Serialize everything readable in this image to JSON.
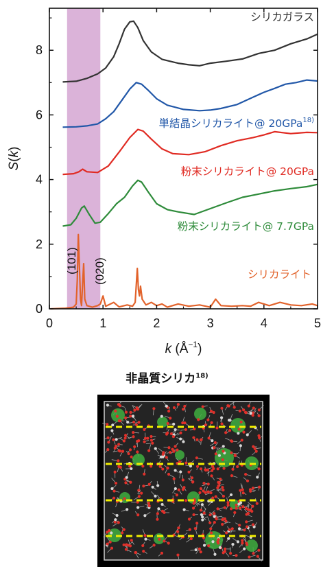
{
  "chart_data": {
    "type": "line",
    "xlabel_var": "k",
    "xlabel_unit": " (Å",
    "xlabel_exp": "−1",
    "xlabel_close": ")",
    "ylabel_var": "S",
    "ylabel_arg": "k",
    "xlim": [
      0,
      5
    ],
    "ylim": [
      0,
      9.3
    ],
    "xticks": [
      0,
      1,
      2,
      3,
      4,
      5
    ],
    "yticks": [
      0,
      2,
      4,
      6,
      8
    ],
    "highlight_band": {
      "x": [
        0.33,
        0.95
      ],
      "color": "#dbb3d9"
    },
    "peak_labels": [
      "(101)",
      "(020)"
    ],
    "series": [
      {
        "name": "シリカガラス",
        "color": "#333333",
        "points": [
          [
            0.25,
            7.02
          ],
          [
            0.5,
            7.04
          ],
          [
            0.7,
            7.13
          ],
          [
            0.9,
            7.27
          ],
          [
            1.05,
            7.45
          ],
          [
            1.2,
            7.8
          ],
          [
            1.3,
            8.2
          ],
          [
            1.4,
            8.65
          ],
          [
            1.5,
            8.88
          ],
          [
            1.57,
            8.9
          ],
          [
            1.65,
            8.7
          ],
          [
            1.75,
            8.3
          ],
          [
            1.9,
            7.95
          ],
          [
            2.1,
            7.72
          ],
          [
            2.4,
            7.6
          ],
          [
            2.6,
            7.55
          ],
          [
            2.8,
            7.52
          ],
          [
            3.0,
            7.6
          ],
          [
            3.3,
            7.66
          ],
          [
            3.6,
            7.73
          ],
          [
            3.9,
            7.9
          ],
          [
            4.2,
            8.0
          ],
          [
            4.5,
            8.2
          ],
          [
            4.8,
            8.35
          ],
          [
            5.0,
            8.5
          ]
        ]
      },
      {
        "name": "単結晶シリカライト@ 20GPa",
        "sup": "18)",
        "color": "#2157a8",
        "points": [
          [
            0.25,
            5.62
          ],
          [
            0.5,
            5.63
          ],
          [
            0.7,
            5.66
          ],
          [
            0.9,
            5.72
          ],
          [
            1.05,
            5.88
          ],
          [
            1.2,
            6.1
          ],
          [
            1.35,
            6.45
          ],
          [
            1.5,
            6.8
          ],
          [
            1.62,
            7.0
          ],
          [
            1.72,
            6.95
          ],
          [
            1.85,
            6.75
          ],
          [
            2.0,
            6.5
          ],
          [
            2.2,
            6.3
          ],
          [
            2.5,
            6.17
          ],
          [
            2.8,
            6.13
          ],
          [
            3.0,
            6.15
          ],
          [
            3.2,
            6.2
          ],
          [
            3.5,
            6.32
          ],
          [
            3.8,
            6.55
          ],
          [
            4.0,
            6.7
          ],
          [
            4.2,
            6.82
          ],
          [
            4.4,
            6.95
          ],
          [
            4.6,
            7.0
          ],
          [
            4.8,
            7.08
          ],
          [
            5.0,
            7.05
          ]
        ]
      },
      {
        "name": "粉末シリカライト@ 20GPa",
        "color": "#e02a22",
        "points": [
          [
            0.25,
            4.16
          ],
          [
            0.45,
            4.18
          ],
          [
            0.55,
            4.24
          ],
          [
            0.62,
            4.32
          ],
          [
            0.7,
            4.24
          ],
          [
            0.9,
            4.22
          ],
          [
            1.1,
            4.42
          ],
          [
            1.3,
            4.85
          ],
          [
            1.5,
            5.3
          ],
          [
            1.65,
            5.55
          ],
          [
            1.75,
            5.5
          ],
          [
            1.9,
            5.25
          ],
          [
            2.1,
            4.95
          ],
          [
            2.3,
            4.8
          ],
          [
            2.6,
            4.77
          ],
          [
            2.9,
            4.86
          ],
          [
            3.2,
            5.05
          ],
          [
            3.5,
            5.2
          ],
          [
            3.8,
            5.3
          ],
          [
            4.0,
            5.38
          ],
          [
            4.2,
            5.48
          ],
          [
            4.5,
            5.42
          ],
          [
            4.8,
            5.46
          ],
          [
            5.0,
            5.45
          ]
        ]
      },
      {
        "name": "粉末シリカライト@ 7.7GPa",
        "color": "#2e8b3a",
        "points": [
          [
            0.25,
            2.56
          ],
          [
            0.4,
            2.6
          ],
          [
            0.5,
            2.8
          ],
          [
            0.6,
            3.12
          ],
          [
            0.65,
            3.18
          ],
          [
            0.75,
            2.9
          ],
          [
            0.85,
            2.65
          ],
          [
            0.95,
            2.68
          ],
          [
            1.1,
            2.95
          ],
          [
            1.25,
            3.25
          ],
          [
            1.4,
            3.45
          ],
          [
            1.55,
            3.8
          ],
          [
            1.65,
            3.98
          ],
          [
            1.72,
            3.92
          ],
          [
            1.85,
            3.6
          ],
          [
            2.0,
            3.25
          ],
          [
            2.2,
            3.07
          ],
          [
            2.4,
            3.0
          ],
          [
            2.7,
            2.92
          ],
          [
            3.0,
            3.1
          ],
          [
            3.3,
            3.28
          ],
          [
            3.6,
            3.45
          ],
          [
            3.9,
            3.55
          ],
          [
            4.2,
            3.65
          ],
          [
            4.5,
            3.72
          ],
          [
            4.8,
            3.78
          ],
          [
            5.0,
            3.85
          ]
        ]
      },
      {
        "name": "シリカライト",
        "color": "#e2622a",
        "points": [
          [
            0.02,
            0.0
          ],
          [
            0.3,
            0.02
          ],
          [
            0.45,
            0.05
          ],
          [
            0.5,
            0.15
          ],
          [
            0.52,
            0.9
          ],
          [
            0.54,
            2.3
          ],
          [
            0.56,
            1.3
          ],
          [
            0.58,
            0.3
          ],
          [
            0.6,
            0.1
          ],
          [
            0.62,
            0.8
          ],
          [
            0.64,
            1.4
          ],
          [
            0.66,
            0.3
          ],
          [
            0.7,
            0.1
          ],
          [
            0.8,
            0.05
          ],
          [
            0.9,
            0.1
          ],
          [
            0.95,
            0.15
          ],
          [
            1.0,
            0.4
          ],
          [
            1.05,
            0.08
          ],
          [
            1.2,
            0.2
          ],
          [
            1.3,
            0.06
          ],
          [
            1.45,
            0.12
          ],
          [
            1.55,
            0.08
          ],
          [
            1.6,
            0.2
          ],
          [
            1.64,
            1.25
          ],
          [
            1.66,
            0.6
          ],
          [
            1.68,
            0.4
          ],
          [
            1.7,
            0.7
          ],
          [
            1.73,
            0.3
          ],
          [
            1.8,
            0.12
          ],
          [
            1.9,
            0.2
          ],
          [
            2.0,
            0.1
          ],
          [
            2.1,
            0.15
          ],
          [
            2.2,
            0.05
          ],
          [
            2.4,
            0.15
          ],
          [
            2.6,
            0.08
          ],
          [
            2.8,
            0.12
          ],
          [
            3.0,
            0.05
          ],
          [
            3.1,
            0.3
          ],
          [
            3.2,
            0.1
          ],
          [
            3.4,
            0.08
          ],
          [
            3.6,
            0.1
          ],
          [
            3.75,
            0.08
          ],
          [
            3.9,
            0.2
          ],
          [
            4.1,
            0.1
          ],
          [
            4.3,
            0.2
          ],
          [
            4.5,
            0.12
          ],
          [
            4.7,
            0.1
          ],
          [
            4.9,
            0.15
          ],
          [
            5.0,
            0.1
          ]
        ]
      }
    ]
  },
  "caption": {
    "text": "非晶質シリカ",
    "sup": "18)"
  }
}
